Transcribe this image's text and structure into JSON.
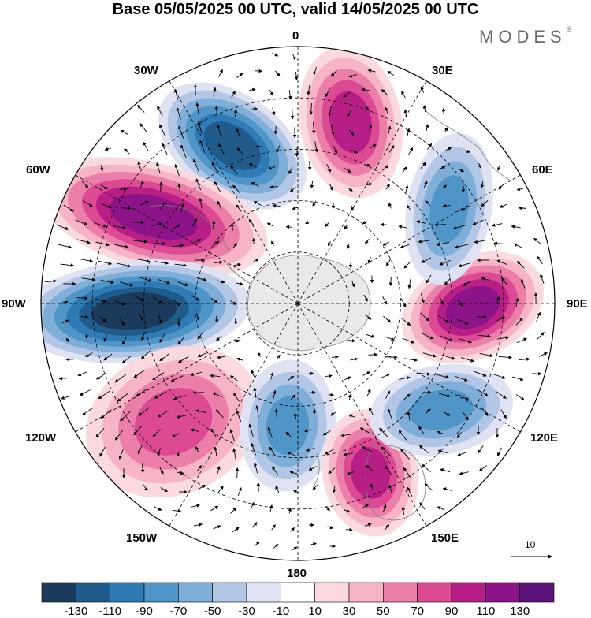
{
  "title": "Base 05/05/2025 00 UTC, valid 14/05/2025 00 UTC",
  "brand": {
    "name": "MODES",
    "mark": "®"
  },
  "longitude_labels": {
    "n0": "0",
    "e30": "30E",
    "e60": "60E",
    "e90": "90E",
    "e120": "120E",
    "e150": "150E",
    "s180": "180",
    "w150": "150W",
    "w120": "120W",
    "w90": "90W",
    "w60": "60W",
    "w30": "30W"
  },
  "reference_vector": {
    "label": "10"
  },
  "colorbar": {
    "tick_labels": [
      "-130",
      "-110",
      "-90",
      "-70",
      "-50",
      "-30",
      "-10",
      "10",
      "30",
      "50",
      "70",
      "90",
      "110",
      "130"
    ],
    "colors": [
      "#1b3a5c",
      "#1f5c8c",
      "#2f7bb5",
      "#4f95c8",
      "#7fafd8",
      "#b2c6e5",
      "#dfe2f2",
      "#ffffff",
      "#fbdadf",
      "#f6b4c6",
      "#ec7eaa",
      "#dc4a94",
      "#b81f86",
      "#8c1388",
      "#5a1479"
    ]
  },
  "map": {
    "projection": "south polar stereographic",
    "anomaly_centers": [
      {
        "name": "negative-30W",
        "value": -120
      },
      {
        "name": "positive-60W",
        "value": 120
      },
      {
        "name": "negative-90W",
        "value": -130
      },
      {
        "name": "positive-135W",
        "value": 80
      },
      {
        "name": "negative-165W",
        "value": -80
      },
      {
        "name": "positive-160E",
        "value": 90
      },
      {
        "name": "negative-115E",
        "value": -80
      },
      {
        "name": "positive-85E",
        "value": 110
      },
      {
        "name": "negative-55E",
        "value": -80
      },
      {
        "name": "positive-15E",
        "value": 100
      }
    ]
  }
}
